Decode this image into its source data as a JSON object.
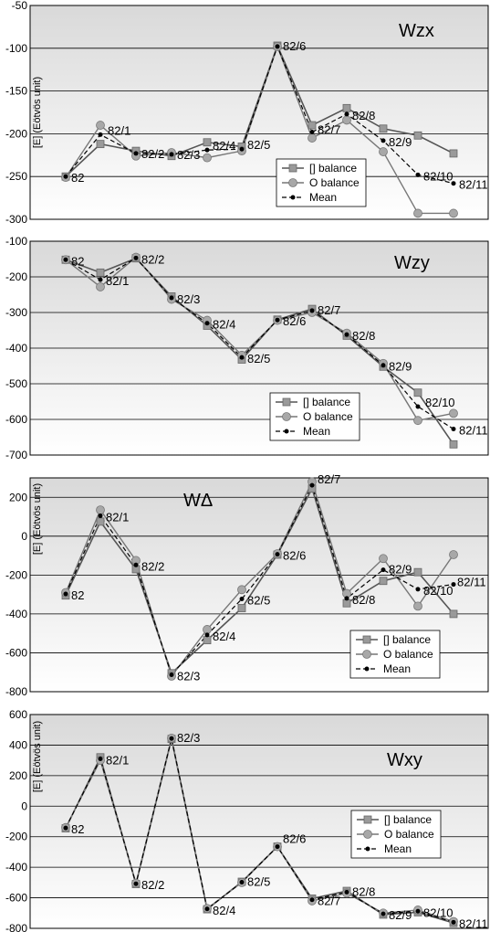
{
  "chart_data": [
    {
      "type": "line",
      "title": "Wzx",
      "ylabel": "[E] (Eötvös unit)",
      "ylim": [
        -300,
        -50
      ],
      "yticks": [
        -50,
        -100,
        -150,
        -200,
        -250,
        -300
      ],
      "points": [
        "82",
        "82/1",
        "82/2",
        "82/3",
        "82/4",
        "82/5",
        "82/6",
        "82/7",
        "82/8",
        "82/9",
        "82/10",
        "82/11"
      ],
      "series": [
        {
          "name": "[] balance",
          "values": [
            -250,
            -212,
            -220,
            -226,
            -210,
            -215,
            -97,
            -190,
            -170,
            -194,
            -202,
            -223
          ]
        },
        {
          "name": "O balance",
          "values": [
            -251,
            -190,
            -226,
            -222,
            -228,
            -220,
            -98,
            -205,
            -184,
            -221,
            -293,
            -293
          ]
        },
        {
          "name": "Mean",
          "values": [
            -250,
            -201,
            -223,
            -224,
            -219,
            -218,
            -98,
            -198,
            -177,
            -208,
            -248,
            -258
          ]
        }
      ],
      "legend": "bottom-right"
    },
    {
      "type": "line",
      "title": "Wzy",
      "ylabel": "",
      "ylim": [
        -700,
        -100
      ],
      "yticks": [
        -100,
        -200,
        -300,
        -400,
        -500,
        -600,
        -700
      ],
      "points": [
        "82",
        "82/1",
        "82/2",
        "82/3",
        "82/4",
        "82/5",
        "82/6",
        "82/7",
        "82/8",
        "82/9",
        "82/10",
        "82/11"
      ],
      "series": [
        {
          "name": "[] balance",
          "values": [
            -152,
            -188,
            -148,
            -255,
            -337,
            -432,
            -320,
            -290,
            -365,
            -452,
            -525,
            -670
          ]
        },
        {
          "name": "O balance",
          "values": [
            -152,
            -228,
            -145,
            -263,
            -322,
            -420,
            -322,
            -300,
            -358,
            -443,
            -603,
            -583
          ]
        },
        {
          "name": "Mean",
          "values": [
            -152,
            -208,
            -147,
            -259,
            -330,
            -426,
            -321,
            -295,
            -362,
            -448,
            -564,
            -627
          ]
        }
      ],
      "legend": "bottom-right"
    },
    {
      "type": "line",
      "title": "WΔ",
      "ylabel": "[E] (Eötvös unit)",
      "ylim": [
        -800,
        300
      ],
      "yticks": [
        200,
        0,
        -200,
        -400,
        -600,
        -800
      ],
      "points": [
        "82",
        "82/1",
        "82/2",
        "82/3",
        "82/4",
        "82/5",
        "82/6",
        "82/7",
        "82/8",
        "82/9",
        "82/10",
        "82/11"
      ],
      "series": [
        {
          "name": "[] balance",
          "values": [
            -305,
            75,
            -170,
            -705,
            -535,
            -370,
            -95,
            245,
            -345,
            -230,
            -185,
            -400
          ]
        },
        {
          "name": "O balance",
          "values": [
            -290,
            135,
            -125,
            -720,
            -480,
            -275,
            -90,
            280,
            -295,
            -115,
            -360,
            -95
          ]
        },
        {
          "name": "Mean",
          "values": [
            -297,
            105,
            -148,
            -713,
            -508,
            -323,
            -93,
            262,
            -320,
            -173,
            -273,
            -248
          ]
        }
      ],
      "legend": "bottom-right"
    },
    {
      "type": "line",
      "title": "Wxy",
      "ylabel": "[E] (Eötvös unit)",
      "ylim": [
        -800,
        600
      ],
      "yticks": [
        600,
        400,
        200,
        0,
        -200,
        -400,
        -600,
        -800
      ],
      "points": [
        "82",
        "82/1",
        "82/2",
        "82/3",
        "82/4",
        "82/5",
        "82/6",
        "82/7",
        "82/8",
        "82/9",
        "82/10",
        "82/11"
      ],
      "series": [
        {
          "name": "[] balance",
          "values": [
            -145,
            320,
            -510,
            440,
            -675,
            -495,
            -265,
            -605,
            -555,
            -710,
            -695,
            -765
          ]
        },
        {
          "name": "O balance",
          "values": [
            -140,
            300,
            -505,
            445,
            -670,
            -500,
            -265,
            -620,
            -570,
            -700,
            -680,
            -755
          ]
        },
        {
          "name": "Mean",
          "values": [
            -143,
            310,
            -508,
            443,
            -673,
            -498,
            -265,
            -613,
            -563,
            -705,
            -688,
            -760
          ]
        }
      ],
      "legend": "bottom-right"
    }
  ]
}
